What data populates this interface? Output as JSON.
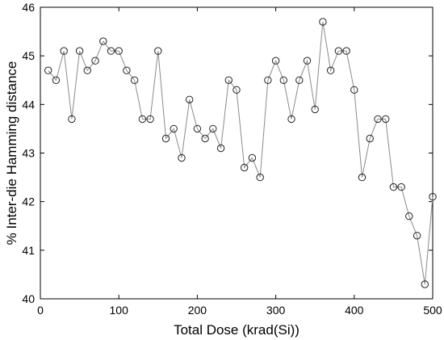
{
  "chart_data": {
    "type": "line",
    "title": "",
    "xlabel": "Total Dose (krad(Si))",
    "ylabel": "% Inter-die Hamming distance",
    "xlim": [
      0,
      500
    ],
    "ylim": [
      40,
      46
    ],
    "xticks": [
      0,
      100,
      200,
      300,
      400,
      500
    ],
    "yticks": [
      40,
      41,
      42,
      43,
      44,
      45,
      46
    ],
    "grid": false,
    "marker": "open-circle",
    "line_color": "#8a8a8a",
    "marker_color": "#222222",
    "series": [
      {
        "x": [
          10,
          20,
          30,
          40,
          50,
          60,
          70,
          80,
          90,
          100,
          110,
          120,
          130,
          140,
          150,
          160,
          170,
          180,
          190,
          200,
          210,
          220,
          230,
          240,
          250,
          260,
          270,
          280,
          290,
          300,
          310,
          320,
          330,
          340,
          350,
          360,
          370,
          380,
          390,
          400,
          410,
          420,
          430,
          440,
          450,
          460,
          470,
          480,
          490,
          500
        ],
        "values": [
          44.7,
          44.5,
          45.1,
          43.7,
          45.1,
          44.7,
          44.9,
          45.3,
          45.1,
          45.1,
          44.7,
          44.5,
          43.7,
          43.7,
          45.1,
          43.3,
          43.5,
          42.9,
          44.1,
          43.5,
          43.3,
          43.5,
          43.1,
          44.5,
          44.3,
          42.7,
          42.9,
          42.5,
          44.5,
          44.9,
          44.5,
          43.7,
          44.5,
          44.9,
          43.9,
          45.7,
          44.7,
          45.1,
          45.1,
          44.3,
          42.5,
          43.3,
          43.7,
          43.7,
          42.3,
          42.3,
          41.7,
          41.3,
          40.3,
          42.1
        ]
      }
    ]
  }
}
